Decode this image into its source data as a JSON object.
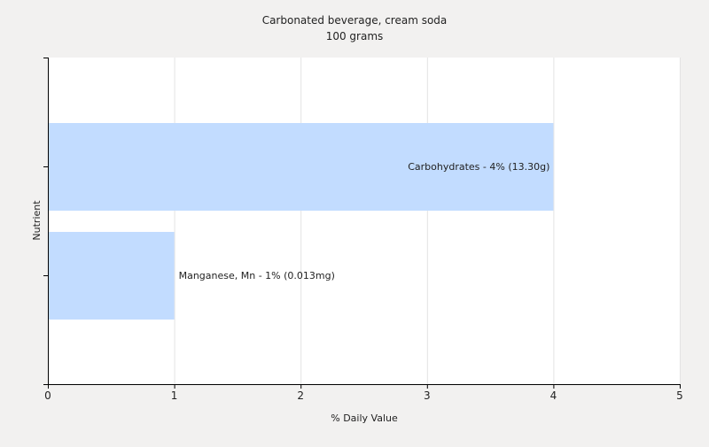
{
  "chart_data": {
    "type": "bar",
    "orientation": "horizontal",
    "title": "Carbonated beverage, cream soda",
    "subtitle": "100 grams",
    "xlabel": "% Daily Value",
    "ylabel": "Nutrient",
    "xlim": [
      0,
      5
    ],
    "xticks": [
      0,
      1,
      2,
      3,
      4,
      5
    ],
    "grid": true,
    "categories": [
      "Carbohydrates",
      "Manganese, Mn"
    ],
    "values": [
      4,
      1
    ],
    "data_labels": [
      "Carbohydrates - 4% (13.30g)",
      "Manganese, Mn - 1% (0.013mg)"
    ],
    "colors": {
      "bar": "#c2dcff",
      "background": "#f2f1f0",
      "plot": "#ffffff",
      "grid": "#e3e3e3",
      "axis": "#000000"
    }
  }
}
